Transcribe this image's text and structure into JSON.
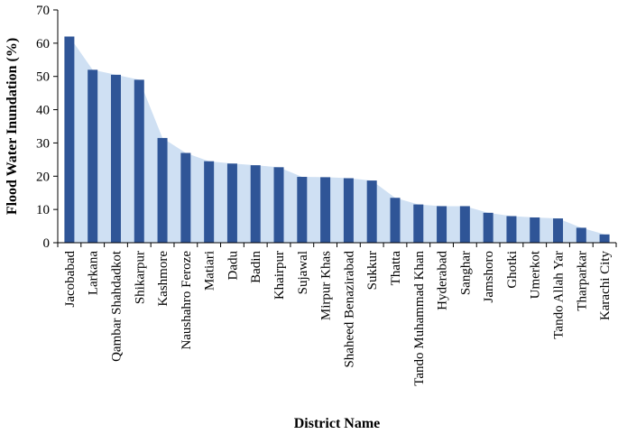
{
  "chart_data": {
    "type": "bar",
    "title": "",
    "xlabel": "District Name",
    "ylabel": "Flood Water Inundation (%)",
    "ylim": [
      0,
      70
    ],
    "yticks": [
      0,
      10,
      20,
      30,
      40,
      50,
      60,
      70
    ],
    "grid": false,
    "legend": "none",
    "categories": [
      "Jacobabad",
      "Larkana",
      "Qambar Shahdadkot",
      "Shikarpur",
      "Kashmore",
      "Naushahro Feroze",
      "Matiari",
      "Dadu",
      "Badin",
      "Khairpur",
      "Sujawal",
      "Mirpur Khas",
      "Shaheed Benazirabad",
      "Sukkur",
      "Thatta",
      "Tando Muhammad Khan",
      "Hyderabad",
      "Sanghar",
      "Jamshoro",
      "Ghotki",
      "Umerkot",
      "Tando Allah Yar",
      "Tharparkar",
      "Karachi City"
    ],
    "values": [
      62,
      52,
      50.5,
      49,
      31.5,
      27,
      24.5,
      23.8,
      23.3,
      22.7,
      19.8,
      19.7,
      19.4,
      18.7,
      13.5,
      11.5,
      11,
      11,
      9,
      8,
      7.6,
      7.3,
      4.5,
      2.5
    ],
    "overlay": "area",
    "colors": {
      "bar": "#2f5597",
      "area": "#cfe0f3"
    }
  }
}
